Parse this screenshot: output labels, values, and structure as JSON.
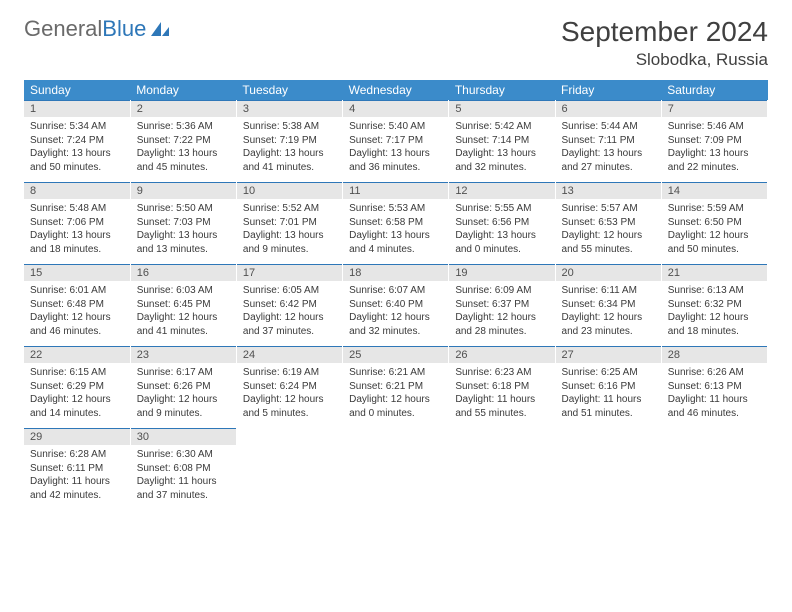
{
  "brand": {
    "word1": "General",
    "word2": "Blue"
  },
  "title": "September 2024",
  "location": "Slobodka, Russia",
  "colors": {
    "header_bg": "#3b8bca",
    "header_text": "#ffffff",
    "daynum_bg": "#e6e6e6",
    "cell_border": "#2e77b8",
    "body_text": "#3a3a3a",
    "page_bg": "#ffffff",
    "logo_gray": "#6a6a6a",
    "logo_blue": "#2e77b8"
  },
  "fonts": {
    "title_size": 28,
    "location_size": 17,
    "weekday_size": 12,
    "daynum_size": 11,
    "body_size": 10
  },
  "weekdays": [
    "Sunday",
    "Monday",
    "Tuesday",
    "Wednesday",
    "Thursday",
    "Friday",
    "Saturday"
  ],
  "weeks": [
    [
      {
        "n": "1",
        "sr": "Sunrise: 5:34 AM",
        "ss": "Sunset: 7:24 PM",
        "dl": "Daylight: 13 hours and 50 minutes."
      },
      {
        "n": "2",
        "sr": "Sunrise: 5:36 AM",
        "ss": "Sunset: 7:22 PM",
        "dl": "Daylight: 13 hours and 45 minutes."
      },
      {
        "n": "3",
        "sr": "Sunrise: 5:38 AM",
        "ss": "Sunset: 7:19 PM",
        "dl": "Daylight: 13 hours and 41 minutes."
      },
      {
        "n": "4",
        "sr": "Sunrise: 5:40 AM",
        "ss": "Sunset: 7:17 PM",
        "dl": "Daylight: 13 hours and 36 minutes."
      },
      {
        "n": "5",
        "sr": "Sunrise: 5:42 AM",
        "ss": "Sunset: 7:14 PM",
        "dl": "Daylight: 13 hours and 32 minutes."
      },
      {
        "n": "6",
        "sr": "Sunrise: 5:44 AM",
        "ss": "Sunset: 7:11 PM",
        "dl": "Daylight: 13 hours and 27 minutes."
      },
      {
        "n": "7",
        "sr": "Sunrise: 5:46 AM",
        "ss": "Sunset: 7:09 PM",
        "dl": "Daylight: 13 hours and 22 minutes."
      }
    ],
    [
      {
        "n": "8",
        "sr": "Sunrise: 5:48 AM",
        "ss": "Sunset: 7:06 PM",
        "dl": "Daylight: 13 hours and 18 minutes."
      },
      {
        "n": "9",
        "sr": "Sunrise: 5:50 AM",
        "ss": "Sunset: 7:03 PM",
        "dl": "Daylight: 13 hours and 13 minutes."
      },
      {
        "n": "10",
        "sr": "Sunrise: 5:52 AM",
        "ss": "Sunset: 7:01 PM",
        "dl": "Daylight: 13 hours and 9 minutes."
      },
      {
        "n": "11",
        "sr": "Sunrise: 5:53 AM",
        "ss": "Sunset: 6:58 PM",
        "dl": "Daylight: 13 hours and 4 minutes."
      },
      {
        "n": "12",
        "sr": "Sunrise: 5:55 AM",
        "ss": "Sunset: 6:56 PM",
        "dl": "Daylight: 13 hours and 0 minutes."
      },
      {
        "n": "13",
        "sr": "Sunrise: 5:57 AM",
        "ss": "Sunset: 6:53 PM",
        "dl": "Daylight: 12 hours and 55 minutes."
      },
      {
        "n": "14",
        "sr": "Sunrise: 5:59 AM",
        "ss": "Sunset: 6:50 PM",
        "dl": "Daylight: 12 hours and 50 minutes."
      }
    ],
    [
      {
        "n": "15",
        "sr": "Sunrise: 6:01 AM",
        "ss": "Sunset: 6:48 PM",
        "dl": "Daylight: 12 hours and 46 minutes."
      },
      {
        "n": "16",
        "sr": "Sunrise: 6:03 AM",
        "ss": "Sunset: 6:45 PM",
        "dl": "Daylight: 12 hours and 41 minutes."
      },
      {
        "n": "17",
        "sr": "Sunrise: 6:05 AM",
        "ss": "Sunset: 6:42 PM",
        "dl": "Daylight: 12 hours and 37 minutes."
      },
      {
        "n": "18",
        "sr": "Sunrise: 6:07 AM",
        "ss": "Sunset: 6:40 PM",
        "dl": "Daylight: 12 hours and 32 minutes."
      },
      {
        "n": "19",
        "sr": "Sunrise: 6:09 AM",
        "ss": "Sunset: 6:37 PM",
        "dl": "Daylight: 12 hours and 28 minutes."
      },
      {
        "n": "20",
        "sr": "Sunrise: 6:11 AM",
        "ss": "Sunset: 6:34 PM",
        "dl": "Daylight: 12 hours and 23 minutes."
      },
      {
        "n": "21",
        "sr": "Sunrise: 6:13 AM",
        "ss": "Sunset: 6:32 PM",
        "dl": "Daylight: 12 hours and 18 minutes."
      }
    ],
    [
      {
        "n": "22",
        "sr": "Sunrise: 6:15 AM",
        "ss": "Sunset: 6:29 PM",
        "dl": "Daylight: 12 hours and 14 minutes."
      },
      {
        "n": "23",
        "sr": "Sunrise: 6:17 AM",
        "ss": "Sunset: 6:26 PM",
        "dl": "Daylight: 12 hours and 9 minutes."
      },
      {
        "n": "24",
        "sr": "Sunrise: 6:19 AM",
        "ss": "Sunset: 6:24 PM",
        "dl": "Daylight: 12 hours and 5 minutes."
      },
      {
        "n": "25",
        "sr": "Sunrise: 6:21 AM",
        "ss": "Sunset: 6:21 PM",
        "dl": "Daylight: 12 hours and 0 minutes."
      },
      {
        "n": "26",
        "sr": "Sunrise: 6:23 AM",
        "ss": "Sunset: 6:18 PM",
        "dl": "Daylight: 11 hours and 55 minutes."
      },
      {
        "n": "27",
        "sr": "Sunrise: 6:25 AM",
        "ss": "Sunset: 6:16 PM",
        "dl": "Daylight: 11 hours and 51 minutes."
      },
      {
        "n": "28",
        "sr": "Sunrise: 6:26 AM",
        "ss": "Sunset: 6:13 PM",
        "dl": "Daylight: 11 hours and 46 minutes."
      }
    ],
    [
      {
        "n": "29",
        "sr": "Sunrise: 6:28 AM",
        "ss": "Sunset: 6:11 PM",
        "dl": "Daylight: 11 hours and 42 minutes."
      },
      {
        "n": "30",
        "sr": "Sunrise: 6:30 AM",
        "ss": "Sunset: 6:08 PM",
        "dl": "Daylight: 11 hours and 37 minutes."
      },
      null,
      null,
      null,
      null,
      null
    ]
  ]
}
